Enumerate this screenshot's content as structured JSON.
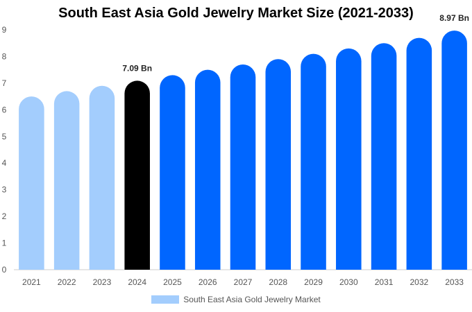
{
  "chart_data": {
    "type": "bar",
    "title": "South East Asia Gold Jewelry Market Size (2021-2033)",
    "categories": [
      "2021",
      "2022",
      "2023",
      "2024",
      "2025",
      "2026",
      "2027",
      "2028",
      "2029",
      "2030",
      "2031",
      "2032",
      "2033"
    ],
    "series": [
      {
        "name": "South East Asia Gold Jewelry Market",
        "values": [
          6.5,
          6.7,
          6.9,
          7.09,
          7.3,
          7.5,
          7.7,
          7.9,
          8.1,
          8.3,
          8.5,
          8.7,
          8.97
        ]
      }
    ],
    "data_labels": [
      {
        "category": "2024",
        "text": "7.09 Bn"
      },
      {
        "category": "2033",
        "text": "8.97 Bn"
      }
    ],
    "ylim": [
      0,
      9
    ],
    "yticks": [
      "0",
      "1",
      "2",
      "3",
      "4",
      "5",
      "6",
      "7",
      "8",
      "9"
    ],
    "xlabel": "",
    "ylabel": "",
    "grid": false,
    "legend_position": "bottom",
    "colors": {
      "historical": "#a3cdfd",
      "current": "#000000",
      "forecast": "#0066ff",
      "legend": "#a3cdfd",
      "axis": "#cccccc"
    },
    "color_groups": {
      "historical": [
        "2021",
        "2022",
        "2023"
      ],
      "current": [
        "2024"
      ],
      "forecast": [
        "2025",
        "2026",
        "2027",
        "2028",
        "2029",
        "2030",
        "2031",
        "2032",
        "2033"
      ]
    }
  }
}
